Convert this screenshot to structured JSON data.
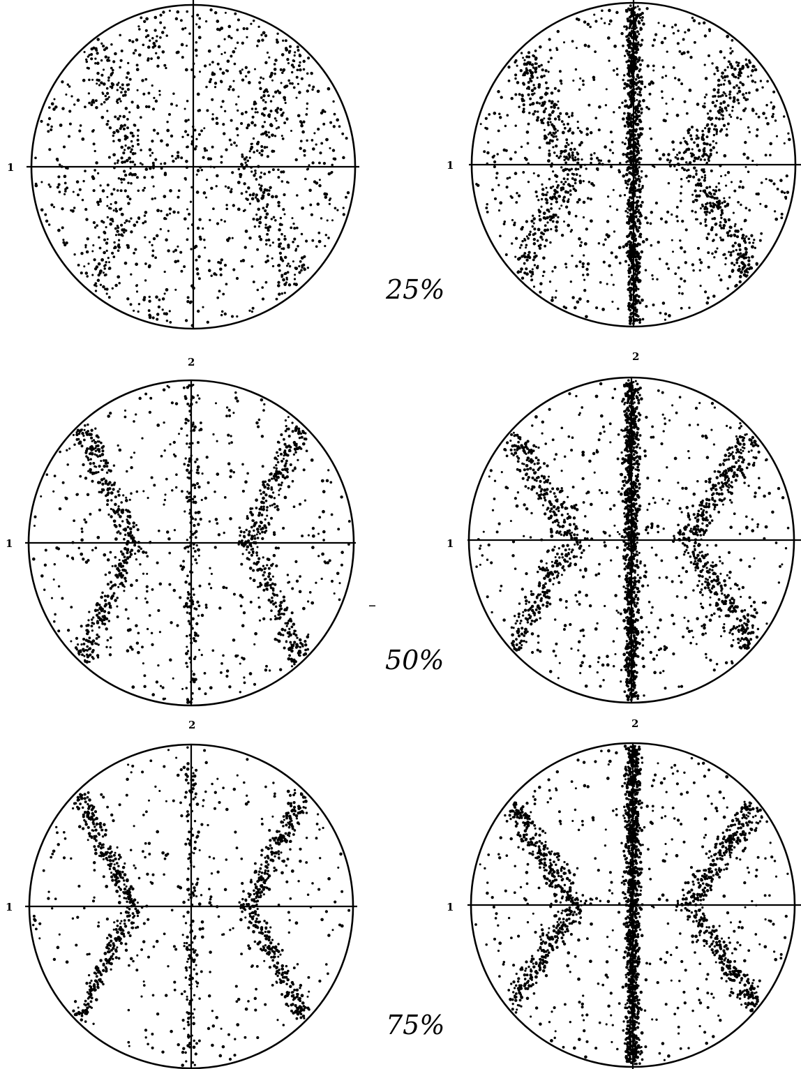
{
  "figure": {
    "plots": [
      {
        "row": 1,
        "col": "left",
        "x_axis_label": "1",
        "y_axis_label": ""
      },
      {
        "row": 1,
        "col": "right",
        "x_axis_label": "1",
        "y_axis_label": ""
      },
      {
        "row": 2,
        "col": "left",
        "x_axis_label": "1",
        "y_axis_label": "2"
      },
      {
        "row": 2,
        "col": "right",
        "x_axis_label": "1",
        "y_axis_label": "2"
      },
      {
        "row": 3,
        "col": "left",
        "x_axis_label": "1",
        "y_axis_label": "2"
      },
      {
        "row": 3,
        "col": "right",
        "x_axis_label": "1",
        "y_axis_label": "2"
      }
    ],
    "row_labels": [
      "25%",
      "50%",
      "75%"
    ],
    "stray_mark": "–",
    "colors": {
      "ink": "#000000",
      "paper": "#ffffff"
    }
  }
}
